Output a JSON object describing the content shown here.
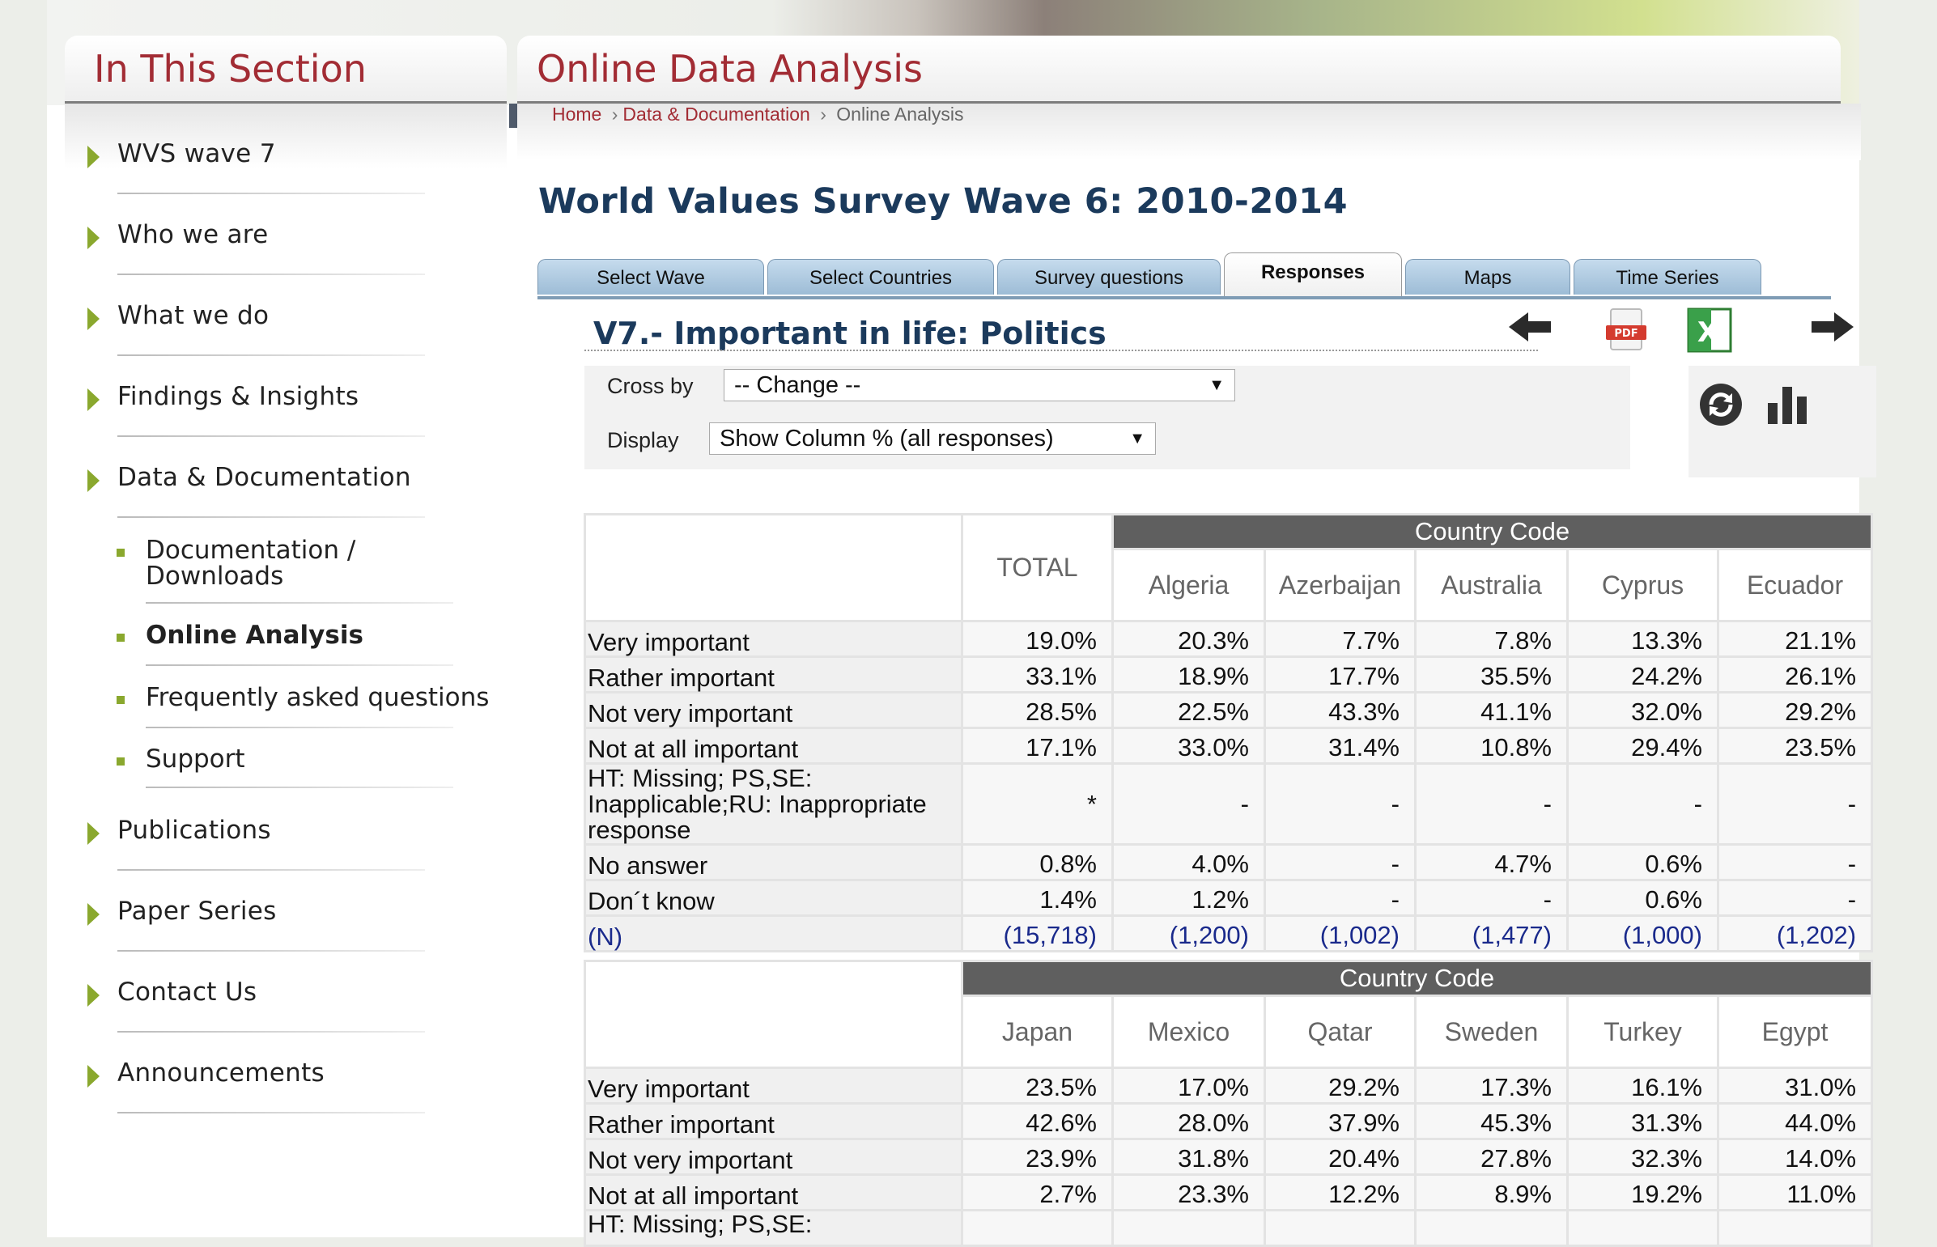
{
  "left_panel": {
    "title": "In This Section",
    "nav": [
      {
        "label": "WVS wave 7"
      },
      {
        "label": "Who we are"
      },
      {
        "label": "What we do"
      },
      {
        "label": "Findings & Insights"
      },
      {
        "label": "Data & Documentation"
      }
    ],
    "subnav": [
      {
        "label": "Documentation / Downloads"
      },
      {
        "label": "Online Analysis"
      },
      {
        "label": "Frequently asked questions"
      },
      {
        "label": "Support"
      }
    ],
    "nav_after": [
      {
        "label": "Publications"
      },
      {
        "label": "Paper Series"
      },
      {
        "label": "Contact Us"
      },
      {
        "label": "Announcements"
      }
    ]
  },
  "right_panel": {
    "title": "Online Data Analysis",
    "breadcrumb": {
      "home": "Home",
      "section": "Data & Documentation",
      "current": "Online Analysis",
      "sep1": "›",
      "sep2": "›"
    }
  },
  "main_title": "World Values Survey Wave 6: 2010-2014",
  "tabs": [
    "Select Wave",
    "Select Countries",
    "Survey questions",
    "Responses",
    "Maps",
    "Time Series"
  ],
  "question": "V7.- Important in life: Politics",
  "toolbar": {
    "back": "arrow-left-icon",
    "pdf": "pdf-icon",
    "pdf_text": "PDF",
    "excel": "excel-icon",
    "excel_text": "X",
    "forward": "arrow-right-icon"
  },
  "controls": {
    "cross_by_label": "Cross by",
    "cross_by_value": "-- Change --",
    "display_label": "Display",
    "display_value": "Show Column % (all responses)",
    "caret": "▼"
  },
  "side_icons": {
    "refresh": "refresh-icon",
    "chart": "bar-chart-icon"
  },
  "table1": {
    "group_header": "Country Code",
    "total_header": "TOTAL",
    "columns": [
      "Algeria",
      "Azerbaijan",
      "Australia",
      "Cyprus",
      "Ecuador"
    ],
    "rows": [
      {
        "label": "Very important",
        "total": "19.0%",
        "values": [
          "20.3%",
          "7.7%",
          "7.8%",
          "13.3%",
          "21.1%"
        ]
      },
      {
        "label": "Rather important",
        "total": "33.1%",
        "values": [
          "18.9%",
          "17.7%",
          "35.5%",
          "24.2%",
          "26.1%"
        ]
      },
      {
        "label": "Not very important",
        "total": "28.5%",
        "values": [
          "22.5%",
          "43.3%",
          "41.1%",
          "32.0%",
          "29.2%"
        ]
      },
      {
        "label": "Not at all important",
        "total": "17.1%",
        "values": [
          "33.0%",
          "31.4%",
          "10.8%",
          "29.4%",
          "23.5%"
        ]
      },
      {
        "label": "HT: Missing; PS,SE: Inapplicable;RU: Inappropriate response",
        "total": "*",
        "values": [
          "-",
          "-",
          "-",
          "-",
          "-"
        ]
      },
      {
        "label": "No answer",
        "total": "0.8%",
        "values": [
          "4.0%",
          "-",
          "4.7%",
          "0.6%",
          "-"
        ]
      },
      {
        "label": "Don´t know",
        "total": "1.4%",
        "values": [
          "1.2%",
          "-",
          "-",
          "0.6%",
          "-"
        ]
      },
      {
        "label": "(N)",
        "total": "(15,718)",
        "values": [
          "(1,200)",
          "(1,002)",
          "(1,477)",
          "(1,000)",
          "(1,202)"
        ]
      }
    ]
  },
  "table2": {
    "group_header": "Country Code",
    "columns": [
      "Japan",
      "Mexico",
      "Qatar",
      "Sweden",
      "Turkey",
      "Egypt"
    ],
    "rows": [
      {
        "label": "Very important",
        "values": [
          "23.5%",
          "17.0%",
          "29.2%",
          "17.3%",
          "16.1%",
          "31.0%"
        ]
      },
      {
        "label": "Rather important",
        "values": [
          "42.6%",
          "28.0%",
          "37.9%",
          "45.3%",
          "31.3%",
          "44.0%"
        ]
      },
      {
        "label": "Not very important",
        "values": [
          "23.9%",
          "31.8%",
          "20.4%",
          "27.8%",
          "32.3%",
          "14.0%"
        ]
      },
      {
        "label": "Not at all important",
        "values": [
          "2.7%",
          "23.3%",
          "12.2%",
          "8.9%",
          "19.2%",
          "11.0%"
        ]
      },
      {
        "label": "HT: Missing; PS,SE:",
        "values": [
          "",
          "",
          "",
          "",
          "",
          ""
        ]
      }
    ]
  }
}
